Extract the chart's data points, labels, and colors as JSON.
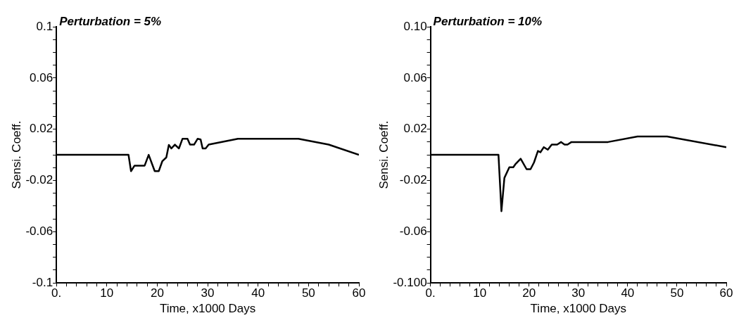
{
  "chart_data": [
    {
      "type": "line",
      "title": "Perturbation = 5%",
      "xlabel": "Time, x1000 Days",
      "ylabel": "Sensi. Coeff.",
      "grid": false,
      "legend": false,
      "marker": "none",
      "line_style": "solid",
      "xlim": [
        0,
        60
      ],
      "ylim": [
        -0.1,
        0.1
      ],
      "xticks": [
        {
          "value": 0,
          "label": "0."
        },
        {
          "value": 2,
          "label": null
        },
        {
          "value": 4,
          "label": null
        },
        {
          "value": 6,
          "label": null
        },
        {
          "value": 8,
          "label": null
        },
        10,
        {
          "value": 12,
          "label": null
        },
        {
          "value": 14,
          "label": null
        },
        {
          "value": 16,
          "label": null
        },
        {
          "value": 18,
          "label": null
        },
        20,
        {
          "value": 22,
          "label": null
        },
        {
          "value": 24,
          "label": null
        },
        {
          "value": 26,
          "label": null
        },
        {
          "value": 28,
          "label": null
        },
        30,
        {
          "value": 32,
          "label": null
        },
        {
          "value": 34,
          "label": null
        },
        {
          "value": 36,
          "label": null
        },
        {
          "value": 38,
          "label": null
        },
        40,
        {
          "value": 42,
          "label": null
        },
        {
          "value": 44,
          "label": null
        },
        {
          "value": 46,
          "label": null
        },
        {
          "value": 48,
          "label": null
        },
        50,
        {
          "value": 52,
          "label": null
        },
        {
          "value": 54,
          "label": null
        },
        {
          "value": 56,
          "label": null
        },
        {
          "value": 58,
          "label": null
        },
        60
      ],
      "yticks": [
        -0.1,
        {
          "value": -0.09,
          "label": null
        },
        {
          "value": -0.08,
          "label": null
        },
        {
          "value": -0.07,
          "label": null
        },
        -0.06,
        {
          "value": -0.05,
          "label": null
        },
        {
          "value": -0.04,
          "label": null
        },
        {
          "value": -0.03,
          "label": null
        },
        -0.02,
        {
          "value": -0.01,
          "label": null
        },
        {
          "value": 0,
          "label": null
        },
        {
          "value": 0.01,
          "label": null
        },
        0.02,
        {
          "value": 0.03,
          "label": null
        },
        {
          "value": 0.04,
          "label": null
        },
        {
          "value": 0.05,
          "label": null
        },
        0.06,
        {
          "value": 0.07,
          "label": null
        },
        {
          "value": 0.08,
          "label": null
        },
        {
          "value": 0.09,
          "label": null
        },
        0.1
      ],
      "series": [
        {
          "color": "#000000",
          "x": [
            0,
            14.3,
            14.8,
            15.5,
            17.5,
            18.3,
            19.5,
            20.3,
            21,
            21.8,
            22.3,
            22.8,
            23.5,
            24.3,
            25,
            26,
            26.5,
            27.3,
            28,
            28.6,
            29,
            29.6,
            30.2,
            36,
            48,
            54,
            60
          ],
          "values": [
            0,
            0,
            -0.0127,
            -0.0084,
            -0.0084,
            0,
            -0.0127,
            -0.0127,
            -0.005,
            -0.002,
            0.0078,
            0.005,
            0.008,
            0.005,
            0.0125,
            0.0125,
            0.008,
            0.008,
            0.0125,
            0.012,
            0.005,
            0.005,
            0.008,
            0.0125,
            0.0125,
            0.008,
            0
          ]
        }
      ]
    },
    {
      "type": "line",
      "title": "Perturbation = 10%",
      "xlabel": "Time, x1000 Days",
      "ylabel": "Sensi. Coeff.",
      "grid": false,
      "legend": false,
      "marker": "none",
      "line_style": "solid",
      "xlim": [
        0,
        60
      ],
      "ylim": [
        -0.1,
        0.1
      ],
      "xticks": [
        {
          "value": 0,
          "label": "0."
        },
        {
          "value": 2,
          "label": null
        },
        {
          "value": 4,
          "label": null
        },
        {
          "value": 6,
          "label": null
        },
        {
          "value": 8,
          "label": null
        },
        10,
        {
          "value": 12,
          "label": null
        },
        {
          "value": 14,
          "label": null
        },
        {
          "value": 16,
          "label": null
        },
        {
          "value": 18,
          "label": null
        },
        20,
        {
          "value": 22,
          "label": null
        },
        {
          "value": 24,
          "label": null
        },
        {
          "value": 26,
          "label": null
        },
        {
          "value": 28,
          "label": null
        },
        30,
        {
          "value": 32,
          "label": null
        },
        {
          "value": 34,
          "label": null
        },
        {
          "value": 36,
          "label": null
        },
        {
          "value": 38,
          "label": null
        },
        40,
        {
          "value": 42,
          "label": null
        },
        {
          "value": 44,
          "label": null
        },
        {
          "value": 46,
          "label": null
        },
        {
          "value": 48,
          "label": null
        },
        50,
        {
          "value": 52,
          "label": null
        },
        {
          "value": 54,
          "label": null
        },
        {
          "value": 56,
          "label": null
        },
        {
          "value": 58,
          "label": null
        },
        60
      ],
      "yticks": [
        {
          "value": -0.1,
          "label": "-0.100"
        },
        {
          "value": -0.09,
          "label": null
        },
        {
          "value": -0.08,
          "label": null
        },
        {
          "value": -0.07,
          "label": null
        },
        -0.06,
        {
          "value": -0.05,
          "label": null
        },
        {
          "value": -0.04,
          "label": null
        },
        {
          "value": -0.03,
          "label": null
        },
        -0.02,
        {
          "value": -0.01,
          "label": null
        },
        {
          "value": 0,
          "label": null
        },
        {
          "value": 0.01,
          "label": null
        },
        0.02,
        {
          "value": 0.03,
          "label": null
        },
        {
          "value": 0.04,
          "label": null
        },
        {
          "value": 0.05,
          "label": null
        },
        0.06,
        {
          "value": 0.07,
          "label": null
        },
        {
          "value": 0.08,
          "label": null
        },
        {
          "value": 0.09,
          "label": null
        },
        {
          "value": 0.1,
          "label": "0.10"
        }
      ],
      "series": [
        {
          "color": "#000000",
          "x": [
            0,
            13.8,
            14.4,
            15,
            16,
            16.8,
            17.3,
            18.3,
            19.5,
            20.3,
            21,
            21.8,
            22.3,
            23,
            23.8,
            24.6,
            25.7,
            26.5,
            27.2,
            27.8,
            28.6,
            36,
            42,
            48,
            60
          ],
          "values": [
            0,
            0,
            -0.044,
            -0.018,
            -0.0097,
            -0.0097,
            -0.007,
            -0.003,
            -0.0112,
            -0.0112,
            -0.006,
            0.003,
            0.002,
            0.006,
            0.004,
            0.008,
            0.008,
            0.01,
            0.008,
            0.008,
            0.01,
            0.01,
            0.0143,
            0.0143,
            0.006
          ]
        }
      ]
    }
  ]
}
